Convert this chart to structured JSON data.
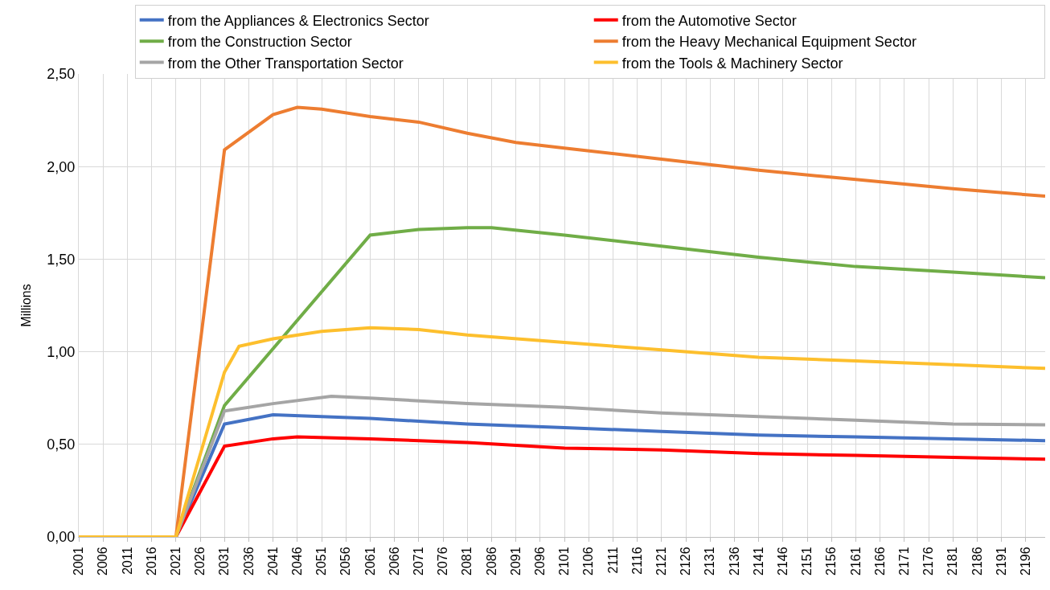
{
  "chart_data": {
    "type": "line",
    "ylabel": "Millions",
    "grid": true,
    "legend": "top",
    "line_style": "solid",
    "marker": "none",
    "xlim": [
      2001,
      2200
    ],
    "xticks": [
      2001,
      2006,
      2011,
      2016,
      2021,
      2026,
      2031,
      2036,
      2041,
      2046,
      2051,
      2056,
      2061,
      2066,
      2071,
      2076,
      2081,
      2086,
      2091,
      2096,
      2101,
      2106,
      2111,
      2116,
      2121,
      2126,
      2131,
      2136,
      2141,
      2146,
      2151,
      2156,
      2161,
      2166,
      2171,
      2176,
      2181,
      2186,
      2191,
      2196
    ],
    "ylim": [
      0,
      2.5
    ],
    "yticks": [
      {
        "value": 0,
        "label": "0,00"
      },
      {
        "value": 0.5,
        "label": "0,50"
      },
      {
        "value": 1,
        "label": "1,00"
      },
      {
        "value": 1.5,
        "label": "1,50"
      },
      {
        "value": 2,
        "label": "2,00"
      },
      {
        "value": 2.5,
        "label": "2,50"
      }
    ],
    "series": [
      {
        "name": "from the Appliances & Electronics Sector",
        "color": "#4472c4",
        "x": [
          2001,
          2021,
          2031,
          2041,
          2061,
          2081,
          2101,
          2121,
          2141,
          2161,
          2181,
          2200
        ],
        "values": [
          0,
          0,
          0.61,
          0.66,
          0.64,
          0.61,
          0.59,
          0.57,
          0.55,
          0.54,
          0.53,
          0.52
        ]
      },
      {
        "name": "from the Automotive Sector",
        "color": "#ff0000",
        "x": [
          2001,
          2021,
          2031,
          2041,
          2046,
          2061,
          2081,
          2101,
          2121,
          2141,
          2161,
          2181,
          2200
        ],
        "values": [
          0,
          0,
          0.49,
          0.53,
          0.54,
          0.53,
          0.51,
          0.48,
          0.47,
          0.45,
          0.44,
          0.43,
          0.42
        ]
      },
      {
        "name": "from the Construction Sector",
        "color": "#70ad47",
        "x": [
          2001,
          2021,
          2031,
          2061,
          2071,
          2081,
          2086,
          2101,
          2121,
          2141,
          2161,
          2181,
          2200
        ],
        "values": [
          0,
          0,
          0.71,
          1.63,
          1.66,
          1.67,
          1.67,
          1.63,
          1.57,
          1.51,
          1.46,
          1.43,
          1.4
        ]
      },
      {
        "name": "from the Heavy Mechanical Equipment Sector",
        "color": "#ed7d31",
        "x": [
          2001,
          2021,
          2031,
          2041,
          2046,
          2051,
          2061,
          2071,
          2081,
          2091,
          2101,
          2121,
          2141,
          2161,
          2181,
          2200
        ],
        "values": [
          0,
          0,
          2.09,
          2.28,
          2.32,
          2.31,
          2.27,
          2.24,
          2.18,
          2.13,
          2.1,
          2.04,
          1.98,
          1.93,
          1.88,
          1.84
        ]
      },
      {
        "name": "from the Other Transportation Sector",
        "color": "#a5a5a5",
        "x": [
          2001,
          2021,
          2031,
          2041,
          2053,
          2061,
          2081,
          2101,
          2121,
          2141,
          2161,
          2181,
          2200
        ],
        "values": [
          0,
          0,
          0.68,
          0.72,
          0.76,
          0.75,
          0.72,
          0.7,
          0.67,
          0.65,
          0.63,
          0.61,
          0.605
        ]
      },
      {
        "name": "from the Tools & Machinery Sector",
        "color": "#fdbf2d",
        "x": [
          2001,
          2021,
          2031,
          2034,
          2041,
          2051,
          2061,
          2071,
          2081,
          2101,
          2121,
          2141,
          2161,
          2181,
          2200
        ],
        "values": [
          0,
          0,
          0.89,
          1.03,
          1.07,
          1.11,
          1.13,
          1.12,
          1.09,
          1.05,
          1.01,
          0.97,
          0.95,
          0.93,
          0.91
        ]
      }
    ]
  }
}
